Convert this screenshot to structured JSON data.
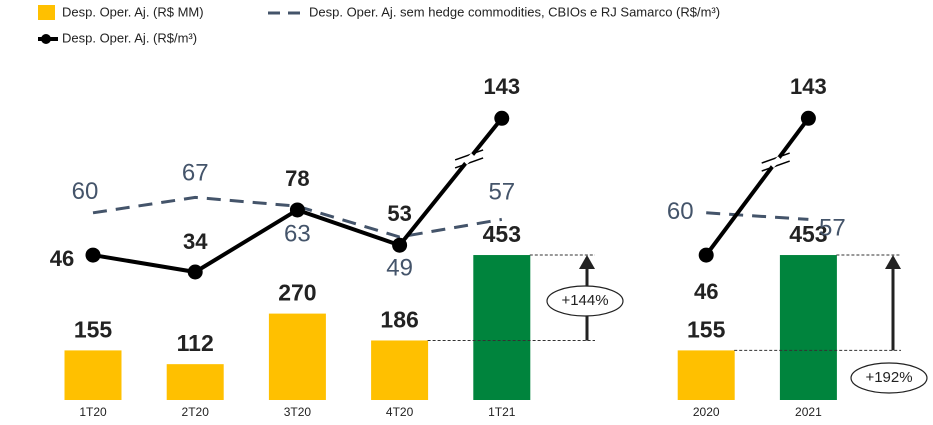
{
  "chart_data": {
    "type": "combo",
    "categories": [
      "1T20",
      "2T20",
      "3T20",
      "4T20",
      "1T21",
      null,
      "2020",
      "2021"
    ],
    "series": [
      {
        "name": "Desp. Oper. Aj. (R$ MM)",
        "type": "bar",
        "color": "#FFC000",
        "colors": [
          "#FFC000",
          "#FFC000",
          "#FFC000",
          "#FFC000",
          "#00843D",
          null,
          "#FFC000",
          "#00843D"
        ],
        "values": [
          155,
          112,
          270,
          186,
          453,
          null,
          155,
          453
        ]
      },
      {
        "name": "Desp. Oper. Aj. sem hedge commodities, CBIOs e RJ Samarco (R$/m³)",
        "type": "line",
        "style": "dashed",
        "color": "#44546A",
        "values": [
          60,
          67,
          63,
          49,
          57,
          null,
          60,
          57
        ]
      },
      {
        "name": "Desp. Oper. Aj. (R$/m³)",
        "type": "line",
        "style": "solid",
        "marker": "circle",
        "color": "#000000",
        "values": [
          46,
          34,
          78,
          53,
          143,
          null,
          46,
          143
        ]
      }
    ],
    "annotations": [
      {
        "text": "+144%"
      },
      {
        "text": "+192%"
      }
    ]
  }
}
